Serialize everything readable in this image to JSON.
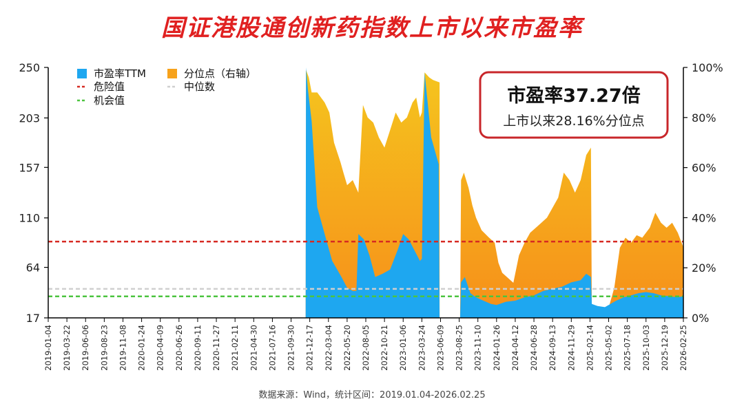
{
  "chart_data": {
    "type": "area",
    "title": "国证港股通创新药指数上市以来市盈率",
    "source": "数据来源：Wind，统计区间：2019.01.04-2026.02.25",
    "y_left": {
      "ticks": [
        "17",
        "64",
        "110",
        "157",
        "203",
        "250"
      ],
      "range": [
        17,
        250
      ]
    },
    "y_right": {
      "ticks": [
        "0%",
        "20%",
        "40%",
        "60%",
        "80%",
        "100%"
      ],
      "range": [
        0,
        100
      ]
    },
    "x_ticks": [
      "2019-01-04",
      "2019-03-22",
      "2019-06-06",
      "2019-08-23",
      "2019-11-08",
      "2020-01-24",
      "2020-04-09",
      "2020-06-26",
      "2020-09-11",
      "2020-11-27",
      "2021-02-11",
      "2021-04-30",
      "2021-07-16",
      "2021-09-30",
      "2021-12-17",
      "2022-03-04",
      "2022-05-20",
      "2022-08-05",
      "2022-10-21",
      "2023-01-06",
      "2023-03-24",
      "2023-06-09",
      "2023-08-25",
      "2023-11-10",
      "2024-01-26",
      "2024-04-12",
      "2024-06-28",
      "2024-09-13",
      "2024-11-29",
      "2025-02-14",
      "2025-05-02",
      "2025-07-18",
      "2025-10-03",
      "2025-12-19",
      "2026-02-25"
    ],
    "legend": [
      {
        "label": "市盈率TTM",
        "kind": "box",
        "color": "#1ea7f0"
      },
      {
        "label": "分位点（右轴）",
        "kind": "box",
        "color": "#f7a21b"
      },
      {
        "label": "危险值",
        "kind": "dash",
        "color": "#d62a22"
      },
      {
        "label": "中位数",
        "kind": "dash",
        "color": "#cfcfcf"
      },
      {
        "label": "机会值",
        "kind": "dash",
        "color": "#4cc43f"
      }
    ],
    "reference_lines": {
      "danger": 88,
      "median": 44,
      "opportunity": 37
    },
    "annotation": {
      "line1": "市盈率37.27倍",
      "line2": "上市以来28.16%分位点"
    },
    "series": [
      {
        "name": "市盈率TTM",
        "axis": "left",
        "points": [
          [
            13.78,
            17
          ],
          [
            13.8,
            250
          ],
          [
            13.9,
            230
          ],
          [
            14.1,
            200
          ],
          [
            14.4,
            120
          ],
          [
            14.8,
            95
          ],
          [
            15.2,
            70
          ],
          [
            15.7,
            55
          ],
          [
            16.0,
            45
          ],
          [
            16.3,
            42
          ],
          [
            16.5,
            42
          ],
          [
            16.6,
            95
          ],
          [
            16.9,
            90
          ],
          [
            17.2,
            75
          ],
          [
            17.5,
            55
          ],
          [
            17.9,
            58
          ],
          [
            18.3,
            62
          ],
          [
            18.7,
            80
          ],
          [
            19.0,
            95
          ],
          [
            19.3,
            90
          ],
          [
            19.6,
            80
          ],
          [
            19.9,
            70
          ],
          [
            20.0,
            72
          ],
          [
            20.15,
            245
          ],
          [
            20.5,
            185
          ],
          [
            20.9,
            160
          ],
          [
            20.95,
            17
          ],
          [
            22.05,
            17
          ],
          [
            22.1,
            50
          ],
          [
            22.3,
            55
          ],
          [
            22.6,
            40
          ],
          [
            22.9,
            36
          ],
          [
            23.3,
            33
          ],
          [
            23.7,
            30
          ],
          [
            24.0,
            29
          ],
          [
            24.5,
            32
          ],
          [
            25.0,
            33
          ],
          [
            25.5,
            36
          ],
          [
            26.0,
            38
          ],
          [
            26.5,
            42
          ],
          [
            27.0,
            44
          ],
          [
            27.5,
            46
          ],
          [
            28.0,
            50
          ],
          [
            28.5,
            52
          ],
          [
            28.8,
            58
          ],
          [
            29.05,
            55
          ],
          [
            29.1,
            30
          ],
          [
            29.4,
            28
          ],
          [
            29.8,
            27
          ],
          [
            30.1,
            30
          ],
          [
            30.4,
            33
          ],
          [
            30.8,
            36
          ],
          [
            31.2,
            38
          ],
          [
            31.6,
            40
          ],
          [
            32.0,
            41
          ],
          [
            32.4,
            40
          ],
          [
            32.8,
            38
          ],
          [
            33.3,
            37
          ],
          [
            33.7,
            36
          ],
          [
            34,
            37.27
          ],
          [
            34,
            17
          ]
        ]
      },
      {
        "name": "分位点（右轴）",
        "axis": "right",
        "points": [
          [
            13.78,
            0
          ],
          [
            13.8,
            99
          ],
          [
            13.95,
            96
          ],
          [
            14.1,
            90
          ],
          [
            14.4,
            90
          ],
          [
            14.8,
            86
          ],
          [
            15.05,
            82
          ],
          [
            15.3,
            70
          ],
          [
            15.65,
            62
          ],
          [
            15.8,
            58
          ],
          [
            16.0,
            53
          ],
          [
            16.3,
            55
          ],
          [
            16.6,
            50
          ],
          [
            16.85,
            85
          ],
          [
            17.1,
            80
          ],
          [
            17.4,
            78
          ],
          [
            17.7,
            72
          ],
          [
            18.0,
            68
          ],
          [
            18.3,
            75
          ],
          [
            18.6,
            82
          ],
          [
            18.9,
            78
          ],
          [
            19.2,
            80
          ],
          [
            19.5,
            86
          ],
          [
            19.7,
            88
          ],
          [
            19.9,
            80
          ],
          [
            20.0,
            82
          ],
          [
            20.15,
            98
          ],
          [
            20.4,
            96
          ],
          [
            20.6,
            95
          ],
          [
            20.95,
            94
          ],
          [
            20.95,
            0
          ],
          [
            22.05,
            0
          ],
          [
            22.1,
            55
          ],
          [
            22.25,
            58
          ],
          [
            22.5,
            52
          ],
          [
            22.7,
            45
          ],
          [
            22.9,
            40
          ],
          [
            23.2,
            35
          ],
          [
            23.6,
            32
          ],
          [
            23.9,
            30
          ],
          [
            24.1,
            22
          ],
          [
            24.3,
            18
          ],
          [
            24.6,
            16
          ],
          [
            24.9,
            14
          ],
          [
            25.2,
            25
          ],
          [
            25.5,
            30
          ],
          [
            25.8,
            34
          ],
          [
            26.1,
            36
          ],
          [
            26.4,
            38
          ],
          [
            26.7,
            40
          ],
          [
            27.0,
            44
          ],
          [
            27.3,
            48
          ],
          [
            27.6,
            58
          ],
          [
            27.9,
            55
          ],
          [
            28.2,
            50
          ],
          [
            28.5,
            55
          ],
          [
            28.8,
            65
          ],
          [
            29.05,
            68
          ],
          [
            29.1,
            2
          ],
          [
            29.3,
            1
          ],
          [
            29.7,
            1
          ],
          [
            30.0,
            4
          ],
          [
            30.3,
            12
          ],
          [
            30.6,
            28
          ],
          [
            30.9,
            32
          ],
          [
            31.2,
            30
          ],
          [
            31.5,
            33
          ],
          [
            31.8,
            32
          ],
          [
            32.2,
            36
          ],
          [
            32.5,
            42
          ],
          [
            32.8,
            38
          ],
          [
            33.1,
            36
          ],
          [
            33.4,
            38
          ],
          [
            33.7,
            34
          ],
          [
            34,
            28.16
          ],
          [
            34,
            0
          ]
        ]
      }
    ]
  }
}
